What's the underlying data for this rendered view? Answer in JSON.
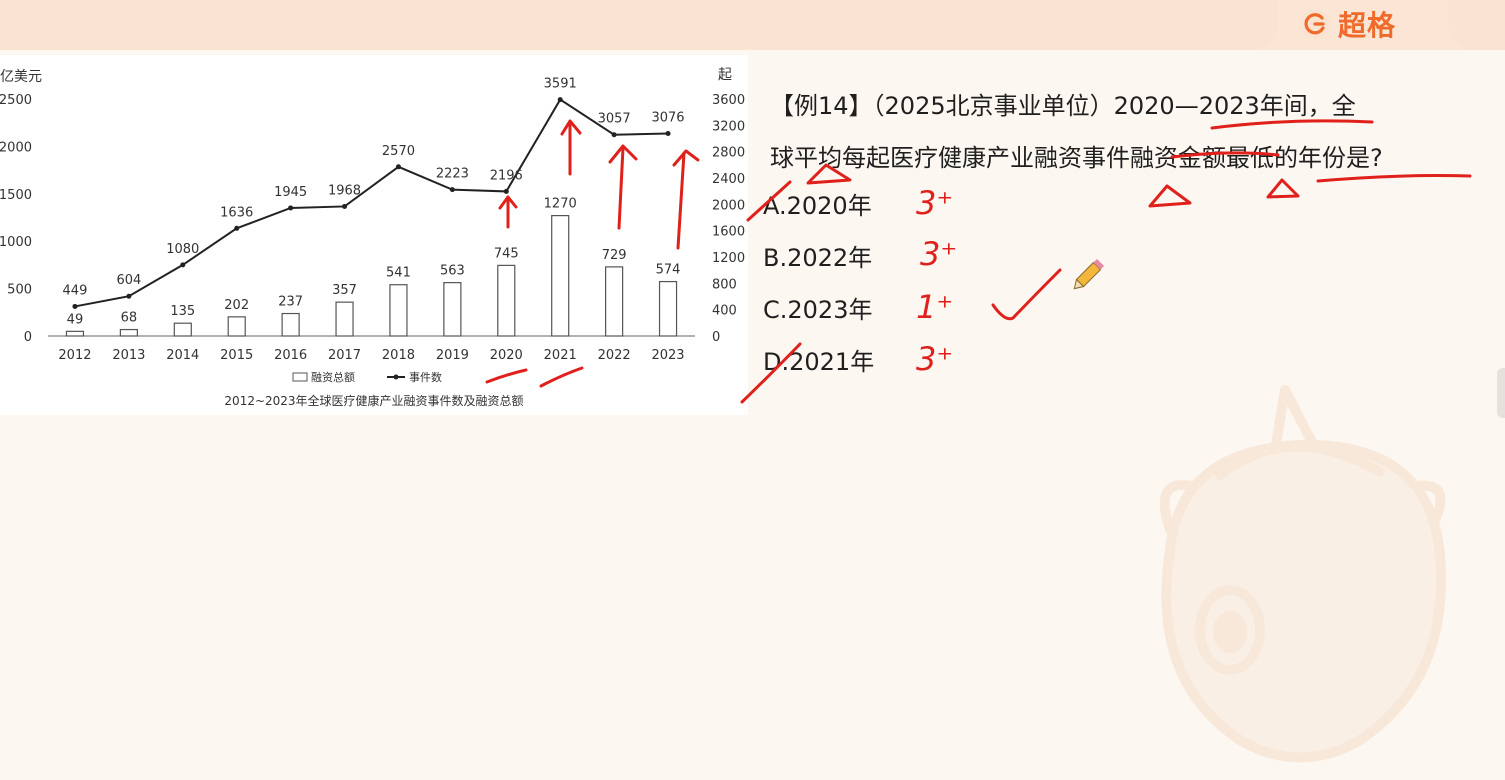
{
  "brand": {
    "name": "超格",
    "logo_icon": "brand-g-icon",
    "color": "#ef6a2b"
  },
  "question": {
    "line1": "【例14】（2025北京事业单位）2020—2023年间，全",
    "line2": "球平均每起医疗健康产业融资事件融资金额最低的年份是?"
  },
  "options": [
    {
      "label": "A.2020年",
      "mark": "3⁺"
    },
    {
      "label": "B.2022年",
      "mark": "3⁺"
    },
    {
      "label": "C.2023年",
      "mark": "1⁺"
    },
    {
      "label": "D.2021年",
      "mark": "3⁺"
    }
  ],
  "annotation_color": "#e0201b",
  "chart_data": {
    "type": "bar+line",
    "title": "2012~2023年全球医疗健康产业融资事件数及融资总额",
    "left_axis_label": "亿美元",
    "right_axis_label": "起",
    "categories": [
      "2012",
      "2013",
      "2014",
      "2015",
      "2016",
      "2017",
      "2018",
      "2019",
      "2020",
      "2021",
      "2022",
      "2023"
    ],
    "left_ticks": [
      "0",
      "500",
      "1000",
      "1500",
      "2000",
      "2500"
    ],
    "right_ticks": [
      "0",
      "400",
      "800",
      "1200",
      "1600",
      "2000",
      "2400",
      "2800",
      "3200",
      "3600"
    ],
    "left_range": [
      0,
      2500
    ],
    "right_range": [
      0,
      3600
    ],
    "legend": [
      "融资总额",
      "事件数"
    ],
    "legend_position": "bottom-center",
    "series": [
      {
        "name": "融资总额",
        "kind": "bar",
        "axis": "left",
        "values": [
          49,
          68,
          135,
          202,
          237,
          357,
          541,
          563,
          745,
          1270,
          729,
          574
        ]
      },
      {
        "name": "事件数",
        "kind": "line",
        "axis": "right",
        "values": [
          449,
          604,
          1080,
          1636,
          1945,
          1968,
          2570,
          2223,
          2196,
          3591,
          3057,
          3076
        ]
      }
    ]
  }
}
